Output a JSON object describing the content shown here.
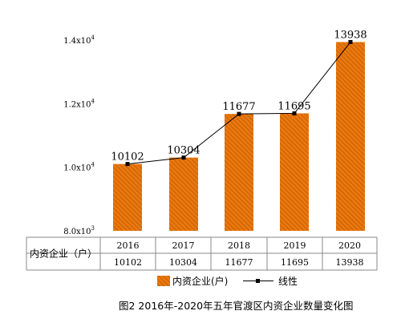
{
  "chart_data": {
    "type": "bar",
    "categories": [
      "2016",
      "2017",
      "2018",
      "2019",
      "2020"
    ],
    "series": [
      {
        "name": "内资企业(户)",
        "type": "bar",
        "values": [
          10102,
          10304,
          11677,
          11695,
          13938
        ],
        "color": "#e4700c"
      },
      {
        "name": "线性",
        "type": "line",
        "values": [
          10102,
          10304,
          11677,
          11695,
          13938
        ],
        "color": "#000000"
      }
    ],
    "data_labels": [
      "10102",
      "10304",
      "11677",
      "11695",
      "13938"
    ],
    "y_ticks": [
      {
        "value": 8000,
        "mantissa": "8.0x10",
        "exp": "3"
      },
      {
        "value": 10000,
        "mantissa": "1.0x10",
        "exp": "4"
      },
      {
        "value": 12000,
        "mantissa": "1.2x10",
        "exp": "4"
      },
      {
        "value": 14000,
        "mantissa": "1.4x10",
        "exp": "4"
      }
    ],
    "ylim": [
      8000,
      14000
    ],
    "grid": false,
    "legend_position": "bottom",
    "table": {
      "row_header": "内资企业（户）",
      "years": [
        "2016",
        "2017",
        "2018",
        "2019",
        "2020"
      ],
      "values": [
        "10102",
        "10304",
        "11677",
        "11695",
        "13938"
      ]
    },
    "legend": {
      "bar_label": "内资企业(户)",
      "line_label": "线性"
    },
    "caption": "图2 2016年-2020年五年官渡区内资企业数量变化图"
  }
}
